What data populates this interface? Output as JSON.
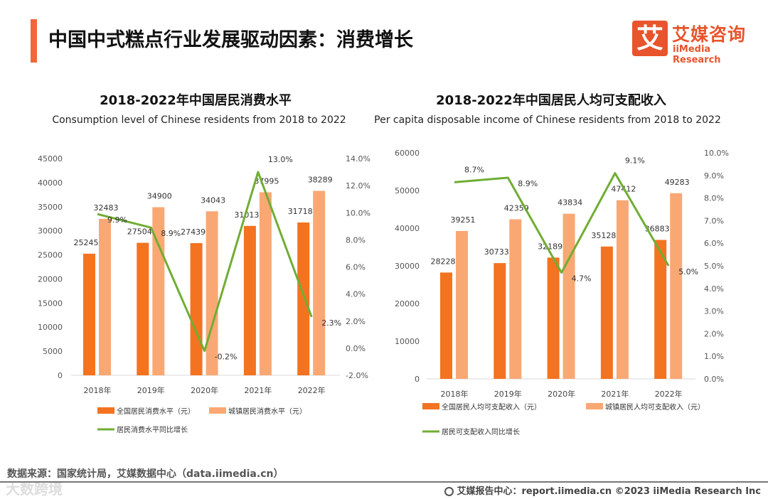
{
  "header": {
    "title": "中国中式糕点行业发展驱动因素：消费增长",
    "logo_mark": "艾",
    "logo_cn": "艾媒咨询",
    "logo_en": "iiMedia Research"
  },
  "colors": {
    "accent": "#f2673a",
    "dark_bar": "#f47320",
    "light_bar": "#f9a874",
    "line": "#70ad33"
  },
  "chart_data": [
    {
      "type": "bar",
      "title": "2018-2022年中国居民消费水平",
      "subtitle": "Consumption level of Chinese residents from 2018 to 2022",
      "categories": [
        "2018年",
        "2019年",
        "2020年",
        "2021年",
        "2022年"
      ],
      "series": [
        {
          "name": "全国居民消费水平（元）",
          "type": "bar",
          "values": [
            25245,
            27504,
            27439,
            31013,
            31718
          ]
        },
        {
          "name": "城镇居民消费水平（元）",
          "type": "bar",
          "values": [
            32483,
            34900,
            34043,
            37995,
            38289
          ]
        },
        {
          "name": "居民消费水平同比增长",
          "type": "line",
          "axis": "right",
          "values": [
            9.9,
            8.9,
            -0.2,
            13.0,
            2.3
          ]
        }
      ],
      "ylim": [
        0,
        45000
      ],
      "yticks": [
        "0",
        "5000",
        "10000",
        "15000",
        "20000",
        "25000",
        "30000",
        "35000",
        "40000",
        "45000"
      ],
      "y2lim": [
        -2,
        14
      ],
      "y2ticks": [
        "-2.0%",
        "0.0%",
        "2.0%",
        "4.0%",
        "6.0%",
        "8.0%",
        "10.0%",
        "12.0%",
        "14.0%"
      ],
      "line_labels": [
        "9.9%",
        "8.9%",
        "-0.2%",
        "13.0%",
        "2.3%"
      ],
      "legend": "bottom"
    },
    {
      "type": "bar",
      "title": "2018-2022年中国居民人均可支配收入",
      "subtitle": "Per capita disposable income of Chinese residents from 2018 to 2022",
      "categories": [
        "2018年",
        "2019年",
        "2020年",
        "2021年",
        "2022年"
      ],
      "series": [
        {
          "name": "全国居民人均可支配收入（元）",
          "type": "bar",
          "values": [
            28228,
            30733,
            32189,
            35128,
            36883
          ]
        },
        {
          "name": "城镇居民人均可支配收入（元）",
          "type": "bar",
          "values": [
            39251,
            42359,
            43834,
            47412,
            49283
          ]
        },
        {
          "name": "居民可支配收入同比增长",
          "type": "line",
          "axis": "right",
          "values": [
            8.7,
            8.9,
            4.7,
            9.1,
            5.0
          ]
        }
      ],
      "ylim": [
        0,
        60000
      ],
      "yticks": [
        "0",
        "10000",
        "20000",
        "30000",
        "40000",
        "50000",
        "60000"
      ],
      "y2lim": [
        0,
        10
      ],
      "y2ticks": [
        "0.0%",
        "1.0%",
        "2.0%",
        "3.0%",
        "4.0%",
        "5.0%",
        "6.0%",
        "7.0%",
        "8.0%",
        "9.0%",
        "10.0%"
      ],
      "line_labels": [
        "8.7%",
        "8.9%",
        "4.7%",
        "9.1%",
        "5.0%"
      ],
      "legend": "bottom"
    }
  ],
  "footer": {
    "source": "数据来源：国家统计局，艾媒数据中心（data.iimedia.cn）",
    "watermark": "大数跨境",
    "right": "艾媒报告中心：report.iimedia.cn  ©2023  iiMedia Research  Inc"
  }
}
